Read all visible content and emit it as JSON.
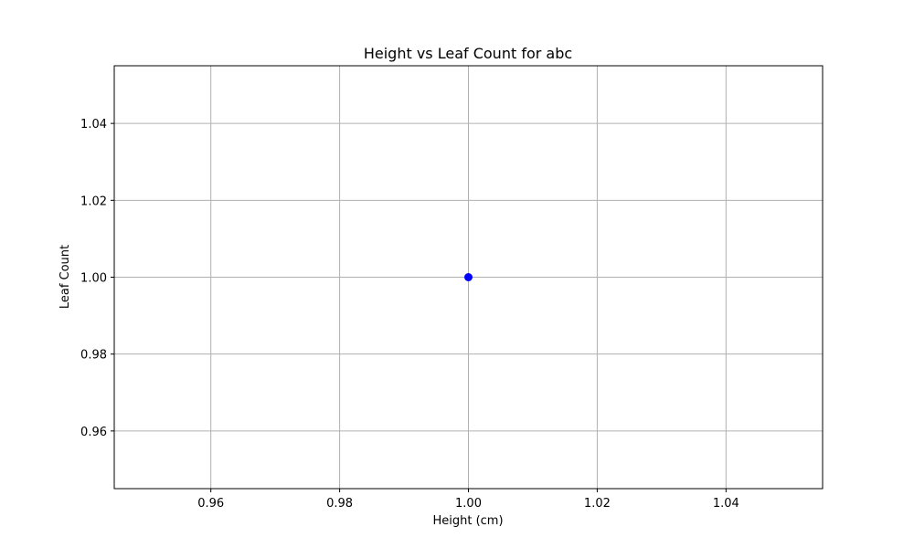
{
  "chart_data": {
    "type": "scatter",
    "title": "Height vs Leaf Count for abc",
    "xlabel": "Height (cm)",
    "ylabel": "Leaf Count",
    "xlim": [
      0.945,
      1.055
    ],
    "ylim": [
      0.945,
      1.055
    ],
    "x_ticks": [
      "0.96",
      "0.98",
      "1.00",
      "1.02",
      "1.04"
    ],
    "y_ticks": [
      "0.96",
      "0.98",
      "1.00",
      "1.02",
      "1.04"
    ],
    "grid": true,
    "series": [
      {
        "color": "#0000ff",
        "points": [
          {
            "x": 1.0,
            "y": 1.0
          }
        ]
      }
    ]
  }
}
